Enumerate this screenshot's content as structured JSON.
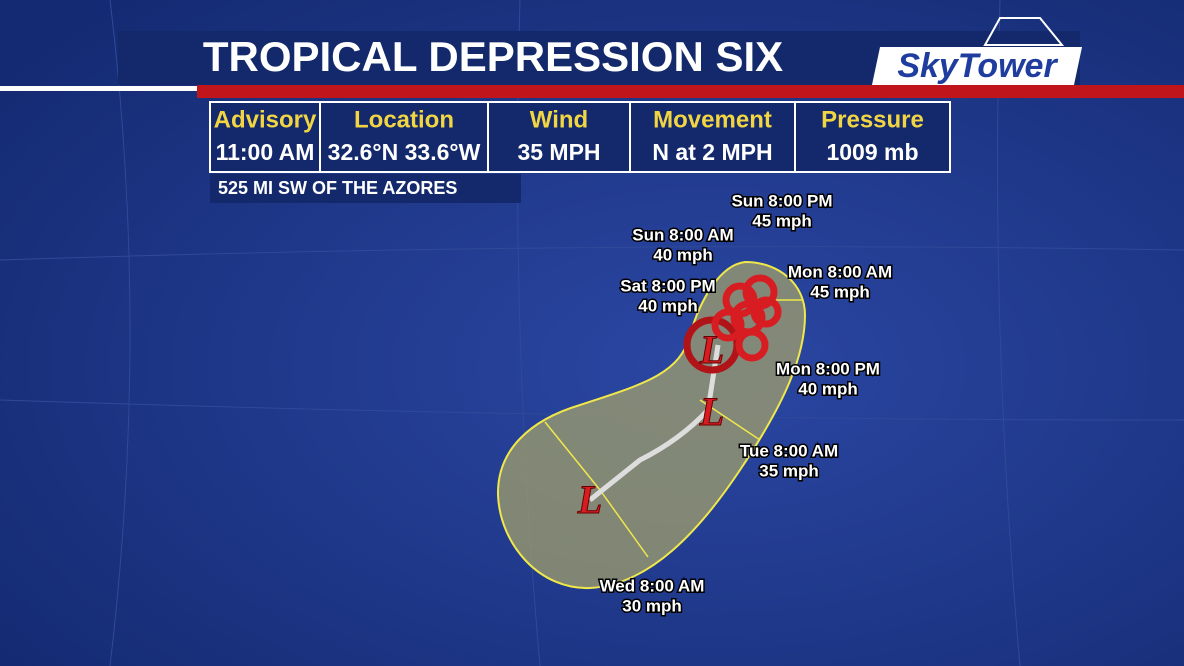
{
  "header": {
    "title": "TROPICAL DEPRESSION SIX",
    "logo": "SkyTower"
  },
  "table": {
    "headers": [
      "Advisory",
      "Location",
      "Wind",
      "Movement",
      "Pressure"
    ],
    "values": [
      "11:00 AM",
      "32.6°N  33.6°W",
      "35 MPH",
      "N at 2 MPH",
      "1009 mb"
    ]
  },
  "location_note": "525 MI SW OF THE AZORES",
  "forecast_points": [
    {
      "time": "Sat 8:00 PM",
      "wind": "40 mph"
    },
    {
      "time": "Sun 8:00 AM",
      "wind": "40 mph"
    },
    {
      "time": "Sun 8:00 PM",
      "wind": "45 mph"
    },
    {
      "time": "Mon 8:00 AM",
      "wind": "45 mph"
    },
    {
      "time": "Mon 8:00 PM",
      "wind": "40 mph"
    },
    {
      "time": "Tue 8:00 AM",
      "wind": "35 mph"
    },
    {
      "time": "Wed 8:00 AM",
      "wind": "30 mph"
    }
  ],
  "storm_symbols": [
    "L",
    "L",
    "L"
  ]
}
